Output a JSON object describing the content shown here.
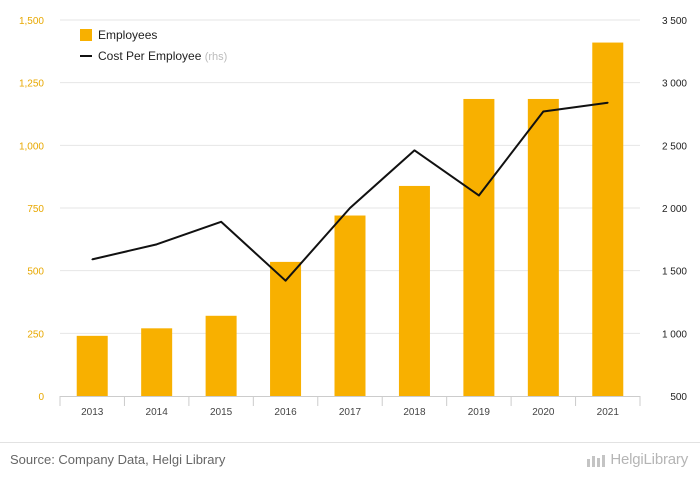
{
  "chart_data": {
    "type": "bar+line",
    "categories": [
      "2013",
      "2014",
      "2015",
      "2016",
      "2017",
      "2018",
      "2019",
      "2020",
      "2021"
    ],
    "series": [
      {
        "name": "Employees",
        "type": "bar",
        "axis": "left",
        "values": [
          240,
          270,
          320,
          535,
          720,
          838,
          1185,
          1185,
          1410
        ]
      },
      {
        "name": "Cost Per Employee",
        "type": "line",
        "axis": "right",
        "values": [
          1590,
          1710,
          1890,
          1420,
          2000,
          2460,
          2100,
          2770,
          2840
        ]
      }
    ],
    "legend": {
      "position": "top-left",
      "rhs_note": "(rhs)"
    },
    "yaxis_left": {
      "ylim": [
        0,
        1500
      ],
      "ticks": [
        0,
        250,
        500,
        750,
        1000,
        1250,
        1500
      ],
      "tick_labels": [
        "0",
        "250",
        "500",
        "750",
        "1,000",
        "1,250",
        "1,500"
      ]
    },
    "yaxis_right": {
      "ylim": [
        500,
        3500
      ],
      "ticks": [
        500,
        1000,
        1500,
        2000,
        2500,
        3000,
        3500
      ],
      "tick_labels": [
        "500",
        "1 000",
        "1 500",
        "2 000",
        "2 500",
        "3 000",
        "3 500"
      ]
    },
    "grid": true,
    "colors": {
      "bar": "#f8b000",
      "line": "#111111",
      "left_axis_text": "#e8a800"
    }
  },
  "footer": {
    "source": "Source: Company Data, Helgi Library",
    "logo": "HelgiLibrary"
  }
}
